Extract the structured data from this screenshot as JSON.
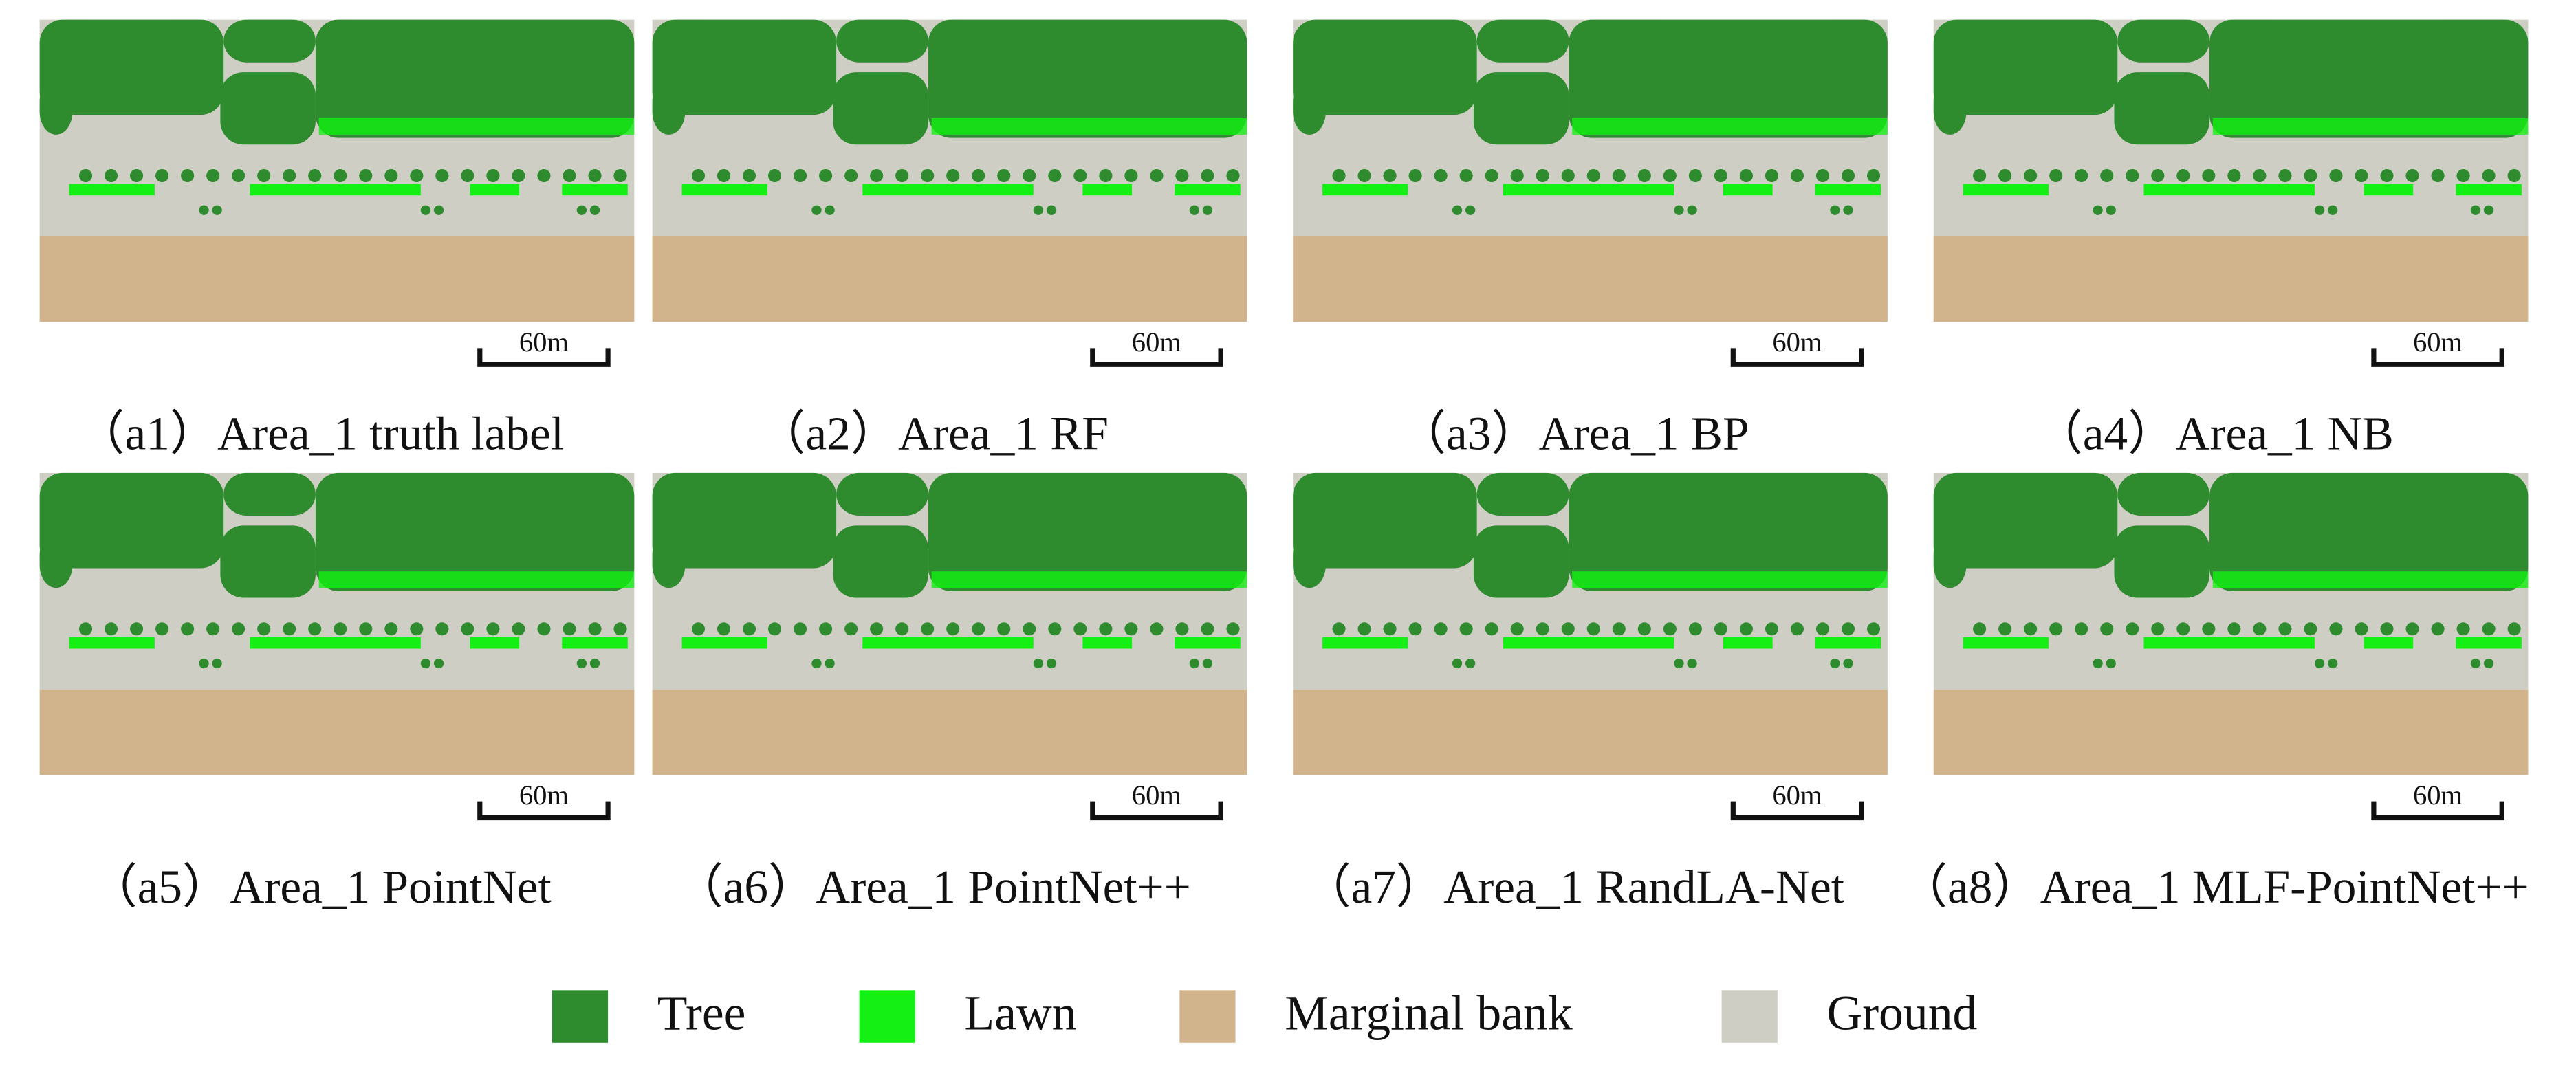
{
  "panels": [
    {
      "caption": "（a1）Area_1 truth label",
      "scale": "60m"
    },
    {
      "caption": "（a2）Area_1 RF",
      "scale": "60m"
    },
    {
      "caption": "（a3）Area_1 BP",
      "scale": "60m"
    },
    {
      "caption": "（a4）Area_1 NB",
      "scale": "60m"
    },
    {
      "caption": "（a5）Area_1 PointNet",
      "scale": "60m"
    },
    {
      "caption": "（a6）Area_1 PointNet++",
      "scale": "60m"
    },
    {
      "caption": "（a7）Area_1 RandLA-Net",
      "scale": "60m"
    },
    {
      "caption": "（a8）Area_1 MLF-PointNet++",
      "scale": "60m"
    }
  ],
  "legend": [
    {
      "label": "Tree",
      "color": "#2e8b2e"
    },
    {
      "label": "Lawn",
      "color": "#14f014"
    },
    {
      "label": "Marginal bank",
      "color": "#d2b48c"
    },
    {
      "label": "Ground",
      "color": "#cfcec4"
    }
  ]
}
